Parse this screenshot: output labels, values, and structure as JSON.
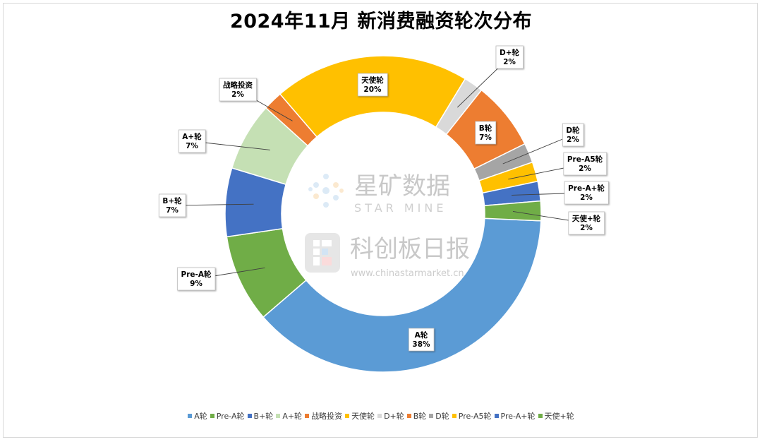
{
  "title": "2024年11月 新消费融资轮次分布",
  "watermark": {
    "brand1_cn": "星矿数据",
    "brand1_en": "STAR MINE",
    "brand2_cn": "科创板日报",
    "brand2_url": "www.chinastarmarket.cn"
  },
  "chart_data": {
    "type": "pie",
    "style": "doughnut",
    "title": "2024年11月 新消费融资轮次分布",
    "legend_position": "bottom",
    "slices": [
      {
        "label": "A轮",
        "value": 38,
        "value_label": "38%",
        "color": "#5b9bd5"
      },
      {
        "label": "Pre-A轮",
        "value": 9,
        "value_label": "9%",
        "color": "#70ad47"
      },
      {
        "label": "B+轮",
        "value": 7,
        "value_label": "7%",
        "color": "#4472c4"
      },
      {
        "label": "A+轮",
        "value": 7,
        "value_label": "7%",
        "color": "#c5e0b4"
      },
      {
        "label": "战略投资",
        "value": 2,
        "value_label": "2%",
        "color": "#ed7d31"
      },
      {
        "label": "天使轮",
        "value": 20,
        "value_label": "20%",
        "color": "#ffc000"
      },
      {
        "label": "D+轮",
        "value": 2,
        "value_label": "2%",
        "color": "#d9d9d9"
      },
      {
        "label": "B轮",
        "value": 7,
        "value_label": "7%",
        "color": "#ed7d31"
      },
      {
        "label": "D轮",
        "value": 2,
        "value_label": "2%",
        "color": "#a5a5a5"
      },
      {
        "label": "Pre-A5轮",
        "value": 2,
        "value_label": "2%",
        "color": "#ffc000"
      },
      {
        "label": "Pre-A+轮",
        "value": 2,
        "value_label": "2%",
        "color": "#4472c4"
      },
      {
        "label": "天使+轮",
        "value": 2,
        "value_label": "2%",
        "color": "#70ad47"
      }
    ]
  }
}
